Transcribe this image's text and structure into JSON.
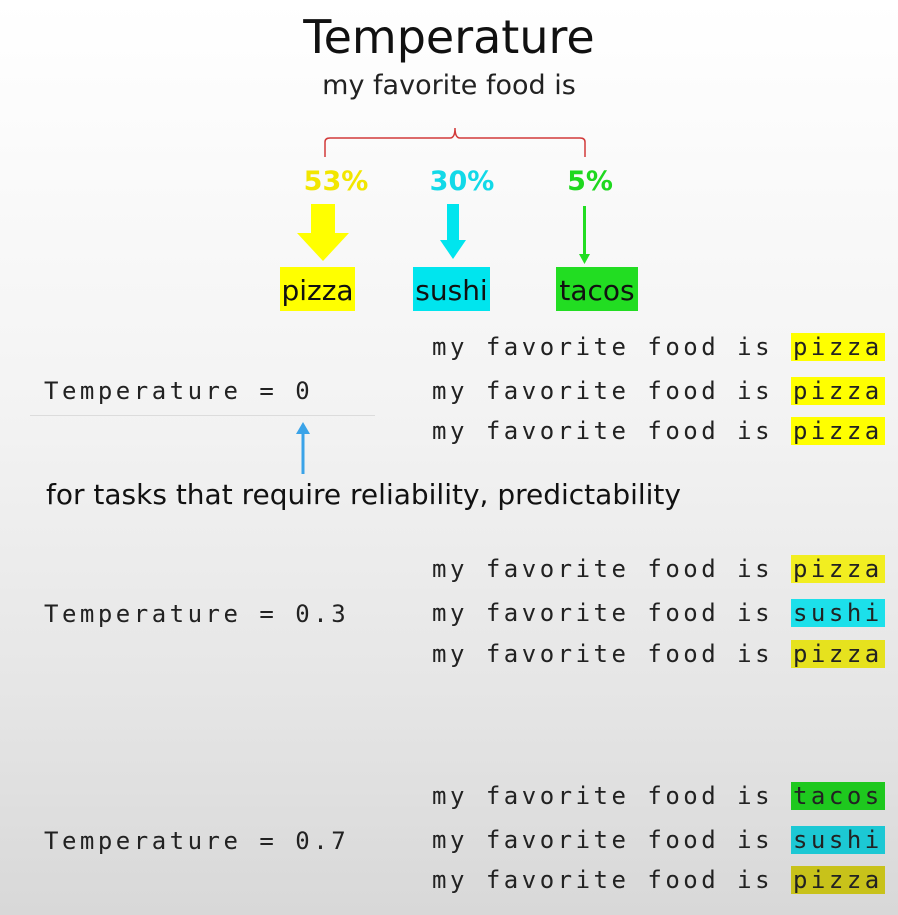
{
  "title": "Temperature",
  "subtitle": "my favorite food is",
  "colors": {
    "pizza": "#ffff00",
    "sushi": "#00e5ee",
    "tacos": "#22dd22",
    "brace": "#d23a3a",
    "pointer": "#3aa3e8"
  },
  "options": [
    {
      "word": "pizza",
      "percent": "53%",
      "color": "#ffff00",
      "pct_color": "#f2e600"
    },
    {
      "word": "sushi",
      "percent": "30%",
      "color": "#00e5ee",
      "pct_color": "#12d9e8"
    },
    {
      "word": "tacos",
      "percent": "5%",
      "color": "#22dd22",
      "pct_color": "#1fd81f"
    }
  ],
  "note": "for tasks that require reliability, predictability",
  "groups": [
    {
      "label": "Temperature = 0",
      "lines": [
        {
          "prefix": "my favorite food is ",
          "word": "pizza",
          "color": "#ffff00"
        },
        {
          "prefix": "my favorite food is ",
          "word": "pizza",
          "color": "#ffff00"
        },
        {
          "prefix": "my favorite food is ",
          "word": "pizza",
          "color": "#ffff00"
        }
      ]
    },
    {
      "label": "Temperature = 0.3",
      "lines": [
        {
          "prefix": "my favorite food is ",
          "word": "pizza",
          "color": "#f2ee20"
        },
        {
          "prefix": "my favorite food is ",
          "word": "sushi",
          "color": "#1ce0ea"
        },
        {
          "prefix": "my favorite food is ",
          "word": "pizza",
          "color": "#e6e21e"
        }
      ]
    },
    {
      "label": "Temperature = 0.7",
      "lines": [
        {
          "prefix": "my favorite food is ",
          "word": "tacos",
          "color": "#1ec81e"
        },
        {
          "prefix": "my favorite food is ",
          "word": "sushi",
          "color": "#1cc8d4"
        },
        {
          "prefix": "my favorite food is ",
          "word": "pizza",
          "color": "#c8c21a"
        }
      ]
    }
  ]
}
